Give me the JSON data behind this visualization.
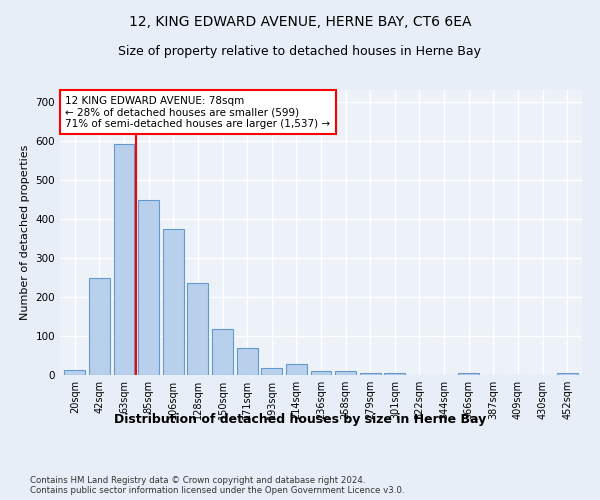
{
  "title": "12, KING EDWARD AVENUE, HERNE BAY, CT6 6EA",
  "subtitle": "Size of property relative to detached houses in Herne Bay",
  "xlabel": "Distribution of detached houses by size in Herne Bay",
  "ylabel": "Number of detached properties",
  "bar_labels": [
    "20sqm",
    "42sqm",
    "63sqm",
    "85sqm",
    "106sqm",
    "128sqm",
    "150sqm",
    "171sqm",
    "193sqm",
    "214sqm",
    "236sqm",
    "258sqm",
    "279sqm",
    "301sqm",
    "322sqm",
    "344sqm",
    "366sqm",
    "387sqm",
    "409sqm",
    "430sqm",
    "452sqm"
  ],
  "bar_values": [
    14,
    248,
    591,
    448,
    373,
    236,
    118,
    68,
    18,
    28,
    10,
    11,
    5,
    6,
    1,
    0,
    5,
    0,
    0,
    0,
    4
  ],
  "bar_color": "#b8d0eb",
  "bar_edgecolor": "#6699cc",
  "vline_color": "red",
  "annotation_text": "12 KING EDWARD AVENUE: 78sqm\n← 28% of detached houses are smaller (599)\n71% of semi-detached houses are larger (1,537) →",
  "annotation_box_color": "white",
  "annotation_box_edgecolor": "red",
  "ylim": [
    0,
    730
  ],
  "yticks": [
    0,
    100,
    200,
    300,
    400,
    500,
    600,
    700
  ],
  "footer": "Contains HM Land Registry data © Crown copyright and database right 2024.\nContains public sector information licensed under the Open Government Licence v3.0.",
  "bg_color": "#e8eef7",
  "plot_bg_color": "#edf2f9",
  "grid_color": "white",
  "title_fontsize": 10,
  "subtitle_fontsize": 9,
  "tick_fontsize": 7,
  "ylabel_fontsize": 8,
  "xlabel_fontsize": 9
}
